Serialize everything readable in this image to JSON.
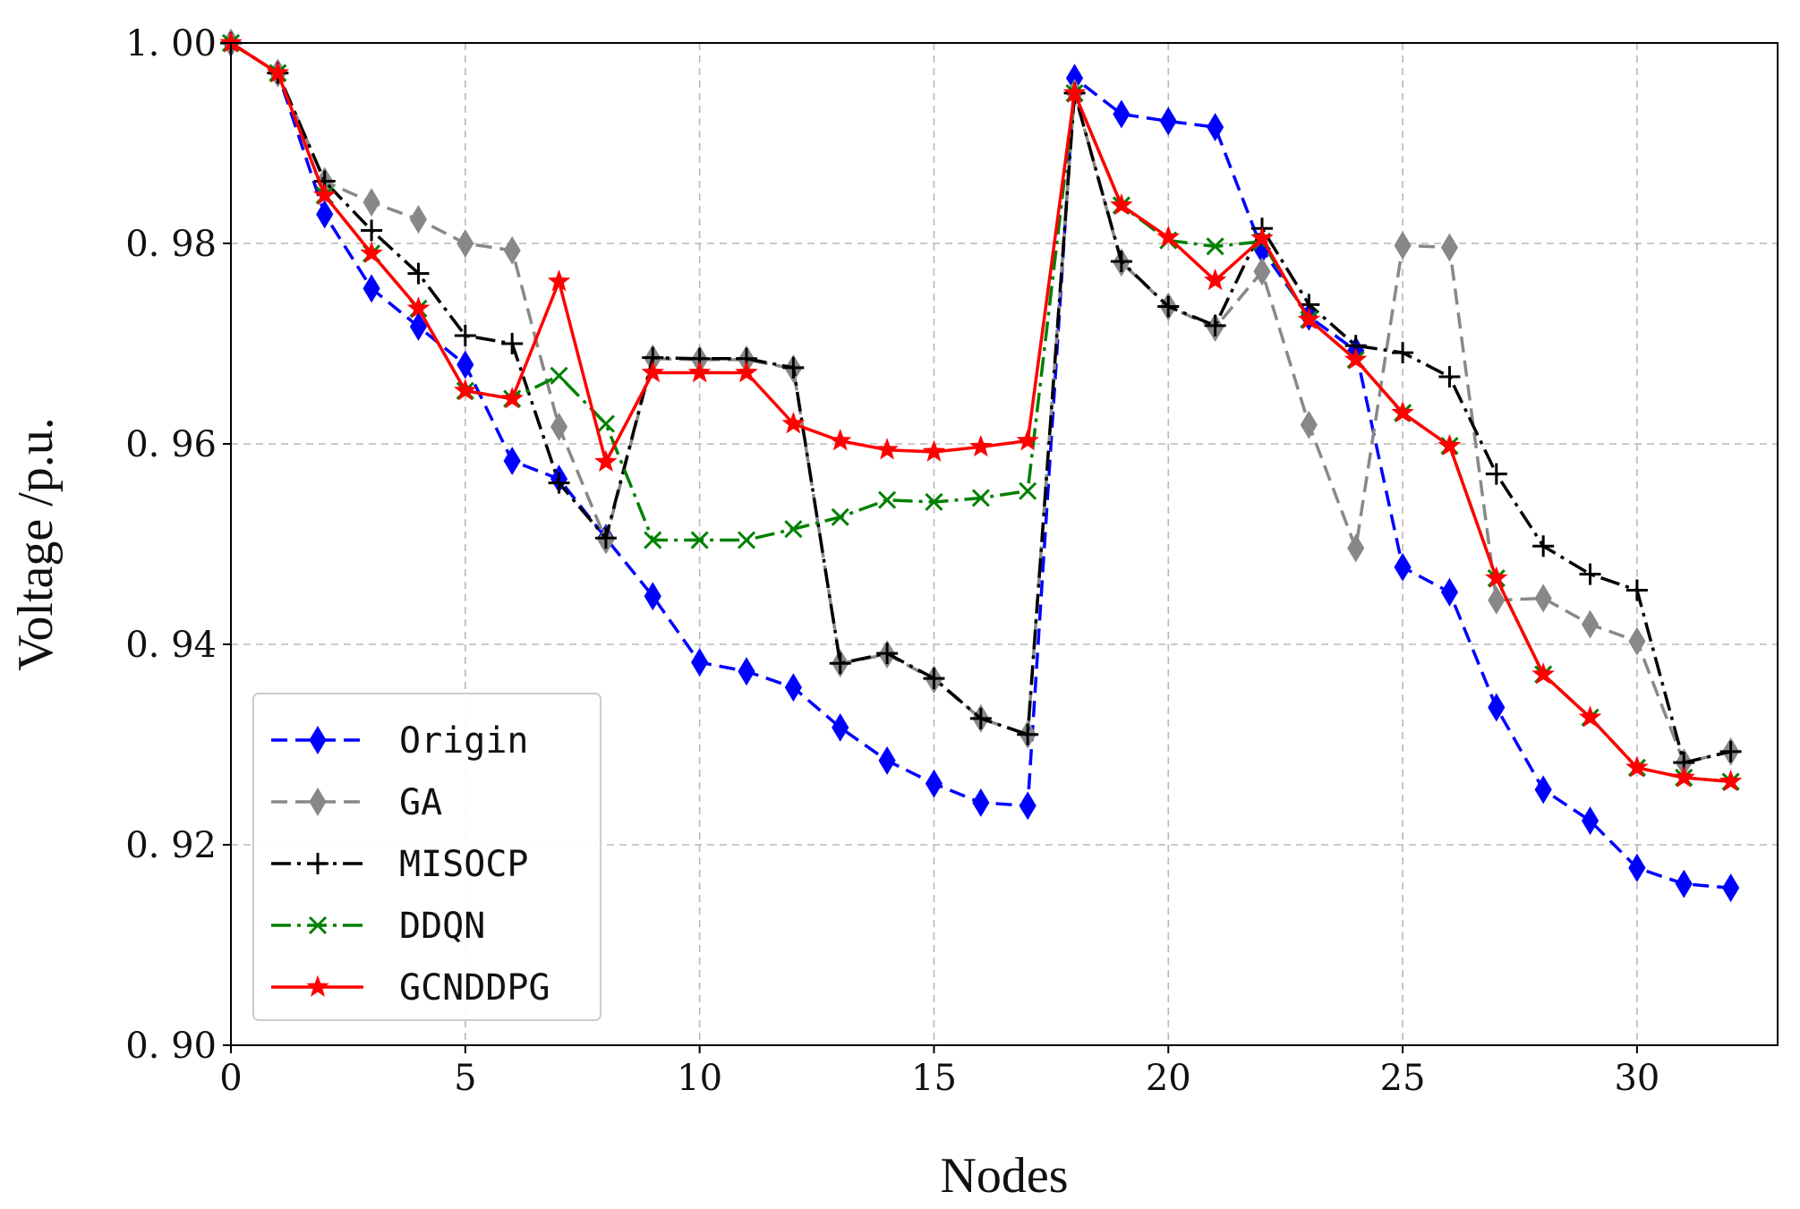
{
  "chart_data": {
    "type": "line",
    "title": "",
    "xlabel": "Nodes",
    "ylabel": "Voltage /p.u.",
    "xlim": [
      0,
      33
    ],
    "ylim": [
      0.9,
      1.0
    ],
    "xticks": [
      0,
      5,
      10,
      15,
      20,
      25,
      30
    ],
    "xtick_labels": [
      "0",
      "5",
      "10",
      "15",
      "20",
      "25",
      "30"
    ],
    "yticks": [
      0.9,
      0.92,
      0.94,
      0.96,
      0.98,
      1.0
    ],
    "ytick_labels": [
      "0. 90",
      "0. 92",
      "0. 94",
      "0. 96",
      "0. 98",
      "1. 00"
    ],
    "grid": true,
    "legend_position": "lower-left",
    "x": [
      0,
      1,
      2,
      3,
      4,
      5,
      6,
      7,
      8,
      9,
      10,
      11,
      12,
      13,
      14,
      15,
      16,
      17,
      18,
      19,
      20,
      21,
      22,
      23,
      24,
      25,
      26,
      27,
      28,
      29,
      30,
      31,
      32
    ],
    "series": [
      {
        "name": "Origin",
        "color": "#0000ff",
        "dash": "dashed",
        "marker": "diamond",
        "values": [
          1.0,
          0.997,
          0.9829,
          0.9755,
          0.9717,
          0.9679,
          0.9583,
          0.9565,
          0.9506,
          0.9448,
          0.9382,
          0.9373,
          0.9357,
          0.9317,
          0.9284,
          0.9261,
          0.9242,
          0.9239,
          0.9965,
          0.9929,
          0.9922,
          0.9916,
          0.9794,
          0.9727,
          0.9693,
          0.9477,
          0.9452,
          0.9337,
          0.9255,
          0.9224,
          0.9177,
          0.9161,
          0.9157
        ]
      },
      {
        "name": "GA",
        "color": "#888888",
        "dash": "dashed",
        "marker": "diamond",
        "values": [
          1.0,
          0.997,
          0.9862,
          0.9841,
          0.9824,
          0.98,
          0.9793,
          0.9617,
          0.9504,
          0.9685,
          0.9684,
          0.9684,
          0.9675,
          0.9381,
          0.939,
          0.9365,
          0.9326,
          0.931,
          0.995,
          0.9781,
          0.9737,
          0.9716,
          0.9772,
          0.9619,
          0.9496,
          0.9798,
          0.9796,
          0.9444,
          0.9446,
          0.942,
          0.9403,
          0.9282,
          0.9293
        ]
      },
      {
        "name": "MISOCP",
        "color": "#000000",
        "dash": "dashdot",
        "marker": "plus",
        "values": [
          1.0,
          0.997,
          0.9862,
          0.9813,
          0.977,
          0.9708,
          0.97,
          0.9561,
          0.9506,
          0.9686,
          0.9685,
          0.9685,
          0.9676,
          0.9381,
          0.9391,
          0.9366,
          0.9326,
          0.931,
          0.995,
          0.9782,
          0.9737,
          0.9718,
          0.9815,
          0.9739,
          0.9698,
          0.9691,
          0.9667,
          0.957,
          0.9498,
          0.947,
          0.9454,
          0.9282,
          0.9293
        ]
      },
      {
        "name": "DDQN",
        "color": "#008000",
        "dash": "dashdot",
        "marker": "x",
        "values": [
          1.0,
          0.997,
          0.9848,
          0.979,
          0.9735,
          0.9653,
          0.9645,
          0.9668,
          0.962,
          0.9504,
          0.9504,
          0.9504,
          0.9515,
          0.9527,
          0.9544,
          0.9542,
          0.9546,
          0.9553,
          0.995,
          0.9838,
          0.9803,
          0.9797,
          0.9802,
          0.9724,
          0.9684,
          0.9631,
          0.9598,
          0.9466,
          0.937,
          0.9327,
          0.9277,
          0.9267,
          0.9263
        ]
      },
      {
        "name": "GCNDDPG",
        "color": "#ff0000",
        "dash": "solid",
        "marker": "star",
        "values": [
          1.0,
          0.997,
          0.9848,
          0.979,
          0.9735,
          0.9653,
          0.9645,
          0.9762,
          0.9582,
          0.9671,
          0.9671,
          0.9671,
          0.962,
          0.9603,
          0.9594,
          0.9592,
          0.9597,
          0.9603,
          0.995,
          0.9838,
          0.9806,
          0.9763,
          0.9805,
          0.9724,
          0.9684,
          0.9631,
          0.9598,
          0.9466,
          0.937,
          0.9327,
          0.9277,
          0.9267,
          0.9263
        ]
      }
    ]
  }
}
